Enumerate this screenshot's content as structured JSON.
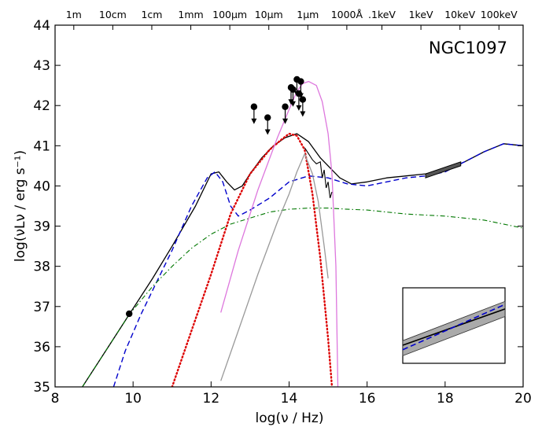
{
  "chart_data": {
    "type": "line",
    "annotation": "NGC1097",
    "xlabel": "log(ν / Hz)",
    "ylabel": "log(νLν / erg s⁻¹)",
    "xlim": [
      8,
      20
    ],
    "ylim": [
      35,
      44
    ],
    "x_ticks": [
      8,
      10,
      12,
      14,
      16,
      18,
      20
    ],
    "y_ticks": [
      35,
      36,
      37,
      38,
      39,
      40,
      41,
      42,
      43,
      44
    ],
    "top_axis": {
      "ticks": [
        {
          "label": "1m",
          "at": 8.48
        },
        {
          "label": "10cm",
          "at": 9.48
        },
        {
          "label": "1cm",
          "at": 10.48
        },
        {
          "label": "1mm",
          "at": 11.48
        },
        {
          "label": "100μm",
          "at": 12.48
        },
        {
          "label": "10μm",
          "at": 13.48
        },
        {
          "label": "1μm",
          "at": 14.48
        },
        {
          "label": "1000Å",
          "at": 15.48
        },
        {
          "label": ".1keV",
          "at": 16.38
        },
        {
          "label": "1keV",
          "at": 17.38
        },
        {
          "label": "10keV",
          "at": 18.38
        },
        {
          "label": "100keV",
          "at": 19.38
        }
      ]
    },
    "colors": {
      "total": "#000000",
      "agn_model": "#0000cc",
      "jet_synchrotron": "#007700",
      "dust": "#dd0000",
      "stars_magenta": "#dd77dd",
      "stars_gray": "#999999",
      "observed": "#000000"
    },
    "series": [
      {
        "style": "solid",
        "color_key": "total",
        "x": [
          8.7,
          9.3,
          9.9,
          10.5,
          11.0,
          11.6,
          12.0,
          12.2,
          12.4,
          12.6,
          12.8,
          13.0,
          13.3,
          13.6,
          13.9,
          14.2,
          14.5,
          14.8,
          15.0,
          15.3,
          15.6,
          16.0,
          16.5,
          17.0,
          17.5,
          18.0,
          18.5,
          19.0,
          19.5,
          20.0
        ],
        "y": [
          35.0,
          35.9,
          36.8,
          37.7,
          38.5,
          39.5,
          40.3,
          40.35,
          40.1,
          39.9,
          40.0,
          40.3,
          40.7,
          41.0,
          41.2,
          41.3,
          41.1,
          40.7,
          40.5,
          40.2,
          40.05,
          40.1,
          40.2,
          40.25,
          40.3,
          40.4,
          40.6,
          40.85,
          41.05,
          41.0
        ]
      },
      {
        "style": "dashed",
        "color_key": "agn_model",
        "x": [
          9.5,
          9.8,
          10.2,
          10.6,
          11.0,
          11.5,
          11.9,
          12.1,
          12.3,
          12.5,
          12.7,
          13.0,
          13.5,
          14.0,
          14.5,
          15.0,
          15.5,
          16.0,
          16.5,
          17.0,
          17.5,
          18.0,
          18.5,
          19.0,
          19.5,
          20.0
        ],
        "y": [
          35.0,
          35.9,
          36.8,
          37.6,
          38.4,
          39.5,
          40.2,
          40.35,
          40.1,
          39.5,
          39.25,
          39.4,
          39.7,
          40.1,
          40.25,
          40.2,
          40.05,
          40.0,
          40.1,
          40.2,
          40.25,
          40.35,
          40.6,
          40.85,
          41.05,
          41.0
        ]
      },
      {
        "style": "dashdot",
        "color_key": "jet_synchrotron",
        "x": [
          8.7,
          9.3,
          9.9,
          10.5,
          11.0,
          11.5,
          12.0,
          12.5,
          13.0,
          13.5,
          14.0,
          14.5,
          15.0,
          15.5,
          16.0,
          17.0,
          18.0,
          19.0,
          20.0
        ],
        "y": [
          35.0,
          35.9,
          36.8,
          37.5,
          38.0,
          38.45,
          38.8,
          39.05,
          39.2,
          39.35,
          39.42,
          39.45,
          39.45,
          39.42,
          39.4,
          39.3,
          39.25,
          39.15,
          38.95
        ]
      },
      {
        "style": "dotted",
        "color_key": "dust",
        "x": [
          11.0,
          11.5,
          12.0,
          12.5,
          13.0,
          13.5,
          13.8,
          14.0,
          14.2,
          14.4,
          14.6,
          14.8,
          15.0,
          15.1
        ],
        "y": [
          35.0,
          36.4,
          37.8,
          39.3,
          40.3,
          40.9,
          41.15,
          41.3,
          41.25,
          40.9,
          39.8,
          38.2,
          36.2,
          35.0
        ]
      },
      {
        "style": "solid",
        "color_key": "stars_magenta",
        "x": [
          12.25,
          12.7,
          13.2,
          13.7,
          14.0,
          14.2,
          14.35,
          14.5,
          14.7,
          14.85,
          15.0,
          15.1,
          15.2,
          15.25
        ],
        "y": [
          36.85,
          38.4,
          39.9,
          41.2,
          41.9,
          42.35,
          42.55,
          42.6,
          42.5,
          42.1,
          41.3,
          40.3,
          38.0,
          35.0
        ]
      },
      {
        "style": "solid",
        "color_key": "stars_gray",
        "x": [
          12.25,
          12.7,
          13.2,
          13.7,
          14.0,
          14.2,
          14.4,
          14.6,
          14.75,
          14.9,
          15.0
        ],
        "y": [
          35.15,
          36.4,
          37.8,
          39.1,
          39.8,
          40.35,
          40.8,
          40.3,
          39.6,
          38.5,
          37.7
        ]
      }
    ],
    "observed_points": [
      {
        "x": 9.9,
        "y": 36.82,
        "upper_limit": false
      },
      {
        "x": 13.1,
        "y": 41.97,
        "upper_limit": true
      },
      {
        "x": 13.45,
        "y": 41.7,
        "upper_limit": true
      },
      {
        "x": 13.9,
        "y": 41.97,
        "upper_limit": true
      },
      {
        "x": 14.05,
        "y": 42.45,
        "upper_limit": true
      },
      {
        "x": 14.1,
        "y": 42.4,
        "upper_limit": true
      },
      {
        "x": 14.2,
        "y": 42.65,
        "upper_limit": true
      },
      {
        "x": 14.25,
        "y": 42.3,
        "upper_limit": true
      },
      {
        "x": 14.3,
        "y": 42.6,
        "upper_limit": true
      },
      {
        "x": 14.35,
        "y": 42.15,
        "upper_limit": true
      }
    ],
    "observed_spectrum": {
      "x": [
        14.4,
        14.5,
        14.6,
        14.7,
        14.8,
        14.85,
        14.9,
        14.95,
        15.0,
        15.05,
        15.1
      ],
      "y": [
        40.95,
        40.8,
        40.65,
        40.55,
        40.6,
        40.2,
        40.4,
        39.95,
        40.1,
        39.7,
        39.85
      ]
    },
    "xray_bowtie": {
      "x": [
        17.5,
        18.4
      ],
      "y_low": [
        40.2,
        40.5
      ],
      "y_high": [
        40.3,
        40.6
      ]
    },
    "inset": {
      "x": [
        0,
        1
      ],
      "black_line": [
        0.24,
        0.72
      ],
      "blue_line": [
        0.18,
        0.78
      ],
      "band_low": [
        0.1,
        0.62
      ],
      "band_high": [
        0.3,
        0.82
      ]
    },
    "grid": false,
    "legend": "none"
  }
}
